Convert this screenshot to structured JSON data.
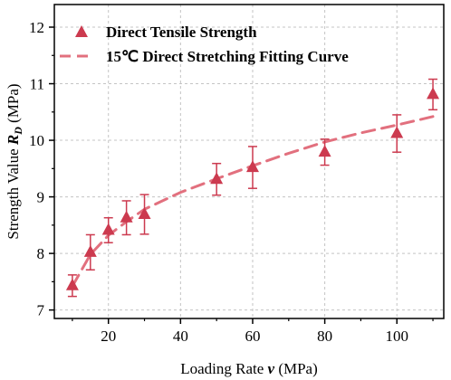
{
  "chart_data": {
    "type": "scatter",
    "xlabel": "Loading Rate",
    "xlabel_symbol": "v",
    "xlabel_unit": "(MPa)",
    "ylabel": "Strength Value",
    "ylabel_symbol": "R",
    "ylabel_subscript": "D",
    "ylabel_unit": "(MPa)",
    "xlim": [
      5,
      113
    ],
    "ylim": [
      6.85,
      12.4
    ],
    "xticks": [
      20,
      40,
      60,
      80,
      100
    ],
    "yticks": [
      7,
      8,
      9,
      10,
      11,
      12
    ],
    "grid": true,
    "legend_position": "top-left",
    "series": [
      {
        "name": "Direct Tensile Strength",
        "kind": "scatter",
        "marker": "triangle",
        "color": "#cc3a4f",
        "x": [
          10,
          15,
          20,
          25,
          30,
          50,
          60,
          80,
          100,
          110
        ],
        "y": [
          7.43,
          8.02,
          8.41,
          8.63,
          8.69,
          9.31,
          9.52,
          9.79,
          10.12,
          10.81
        ],
        "error": [
          0.19,
          0.31,
          0.22,
          0.3,
          0.35,
          0.28,
          0.37,
          0.23,
          0.33,
          0.27
        ]
      },
      {
        "name": "15℃ Direct Stretching Fitting Curve",
        "kind": "line",
        "style": "dashed",
        "color": "#e2707e",
        "x": [
          10,
          15,
          20,
          25,
          30,
          40,
          50,
          60,
          70,
          80,
          90,
          100,
          110
        ],
        "y": [
          7.42,
          7.98,
          8.32,
          8.56,
          8.78,
          9.08,
          9.32,
          9.55,
          9.77,
          9.97,
          10.13,
          10.27,
          10.42
        ]
      }
    ]
  }
}
